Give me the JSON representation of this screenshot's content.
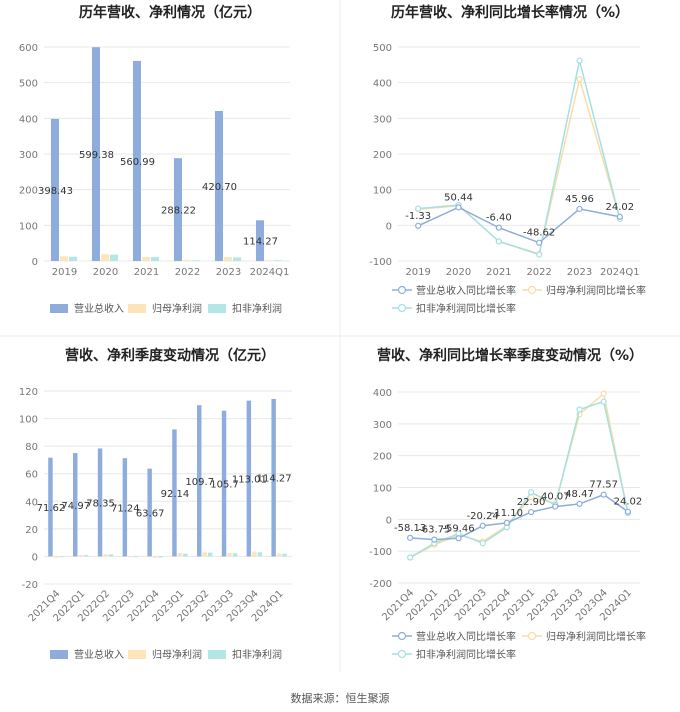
{
  "source": "数据来源：恒生聚源",
  "colors": {
    "revenue": "#8eaddc",
    "parent_profit": "#fde4b9",
    "deducted_profit": "#b3e6e6",
    "line_revenue": "#8eaddc",
    "line_parent": "#f9dca6",
    "line_deducted": "#a3e1e3",
    "grid": "#e8e8e8",
    "axis_text": "#777777",
    "title_text": "#222222"
  },
  "chart_data": [
    {
      "type": "bar",
      "title": "历年营收、净利情况（亿元）",
      "categories": [
        "2019",
        "2020",
        "2021",
        "2022",
        "2023",
        "2024Q1"
      ],
      "y_ticks": [
        "0",
        "100",
        "200",
        "300",
        "400",
        "500",
        "600"
      ],
      "ylim": [
        0,
        600
      ],
      "legend": "bottom",
      "series": [
        {
          "name": "营业总收入",
          "values": [
            398.43,
            599.38,
            560.99,
            288.22,
            420.7,
            114.27
          ],
          "labels": [
            "398.43",
            "599.38",
            "560.99",
            "288.22",
            "420.70",
            "114.27"
          ]
        },
        {
          "name": "归母净利润",
          "values": [
            13,
            19,
            11,
            3,
            11,
            2
          ]
        },
        {
          "name": "扣非净利润",
          "values": [
            12,
            18,
            11,
            2,
            10,
            2
          ]
        }
      ]
    },
    {
      "type": "line",
      "title": "历年营收、净利同比增长率情况（%）",
      "categories": [
        "2019",
        "2020",
        "2021",
        "2022",
        "2023",
        "2024Q1"
      ],
      "y_ticks": [
        "-100",
        "0",
        "100",
        "200",
        "300",
        "400",
        "500"
      ],
      "ylim": [
        -100,
        500
      ],
      "legend": "bottom",
      "series": [
        {
          "name": "营业总收入同比增长率",
          "values": [
            -1.33,
            50.44,
            -6.4,
            -48.62,
            45.96,
            24.02
          ],
          "labels": [
            "-1.33",
            "50.44",
            "-6.40",
            "-48.62",
            "45.96",
            "24.02"
          ]
        },
        {
          "name": "归母净利润同比增长率",
          "values": [
            45,
            55,
            -45,
            -80,
            410,
            20
          ]
        },
        {
          "name": "扣非净利润同比增长率",
          "values": [
            47,
            57,
            -45,
            -82,
            462,
            18
          ]
        }
      ]
    },
    {
      "type": "bar",
      "title": "营收、净利季度变动情况（亿元）",
      "categories": [
        "2021Q4",
        "2022Q1",
        "2022Q2",
        "2022Q3",
        "2022Q4",
        "2023Q1",
        "2023Q2",
        "2023Q3",
        "2023Q4",
        "2024Q1"
      ],
      "y_ticks": [
        "-20",
        "0",
        "20",
        "40",
        "60",
        "80",
        "100",
        "120"
      ],
      "ylim": [
        -20,
        120
      ],
      "legend": "bottom",
      "series": [
        {
          "name": "营业总收入",
          "values": [
            71.62,
            74.97,
            78.35,
            71.24,
            63.67,
            92.14,
            109.7,
            105.7,
            113.01,
            114.27
          ],
          "labels": [
            "71.62",
            "74.97",
            "78.35",
            "71.24",
            "63.67",
            "92.14",
            "109.7",
            "105.7",
            "113.01",
            "114.27"
          ]
        },
        {
          "name": "归母净利润",
          "values": [
            -1,
            1,
            1.5,
            -0.5,
            -1,
            2.5,
            3,
            2.5,
            3.5,
            2
          ]
        },
        {
          "name": "扣非净利润",
          "values": [
            -0.5,
            1,
            1.5,
            -0.3,
            -0.8,
            2,
            2.8,
            2.3,
            3,
            2
          ]
        }
      ]
    },
    {
      "type": "line",
      "title": "营收、净利同比增长率季度变动情况（%）",
      "categories": [
        "2021Q4",
        "2022Q1",
        "2022Q2",
        "2022Q3",
        "2022Q4",
        "2023Q1",
        "2023Q2",
        "2023Q3",
        "2023Q4",
        "2024Q1"
      ],
      "y_ticks": [
        "-200",
        "-100",
        "0",
        "100",
        "200",
        "300",
        "400"
      ],
      "ylim": [
        -200,
        400
      ],
      "legend": "bottom",
      "series": [
        {
          "name": "营业总收入同比增长率",
          "values": [
            -58.13,
            -63.75,
            -59.46,
            -20.24,
            -11.1,
            22.9,
            40.07,
            48.47,
            77.57,
            24.02
          ],
          "labels": [
            "-58.13",
            "-63.75",
            "-59.46",
            "-20.24",
            "-11.10",
            "22.90",
            "40.07",
            "48.47",
            "77.57",
            "24.02"
          ]
        },
        {
          "name": "归母净利润同比增长率",
          "values": [
            -120,
            -80,
            -50,
            -70,
            -20,
            70,
            50,
            330,
            395,
            20
          ]
        },
        {
          "name": "扣非净利润同比增长率",
          "values": [
            -120,
            -75,
            -45,
            -75,
            -25,
            85,
            45,
            345,
            370,
            20
          ]
        }
      ]
    }
  ]
}
